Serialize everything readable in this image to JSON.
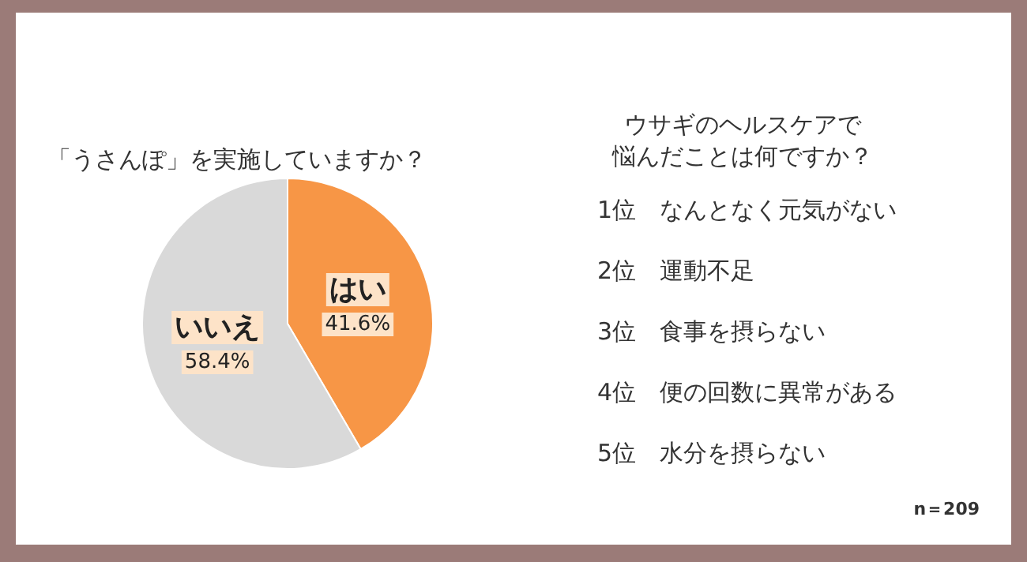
{
  "chart_data": [
    {
      "type": "pie",
      "title": "「うさんぽ」を実施していますか？",
      "categories": [
        "はい",
        "いいえ"
      ],
      "values": [
        41.6,
        58.4
      ],
      "value_labels": [
        "41.6%",
        "58.4%"
      ],
      "colors": [
        "#f79646",
        "#d9d9d9"
      ]
    },
    {
      "type": "other",
      "title": "ウサギのヘルスケアで悩んだことは何ですか？",
      "annotations": [
        "1位　なんとなく元気がない",
        "2位　運動不足",
        "3位　食事を摂らない",
        "4位　便の回数に異常がある",
        "5位　水分を摂らない",
        "n＝209"
      ]
    }
  ]
}
